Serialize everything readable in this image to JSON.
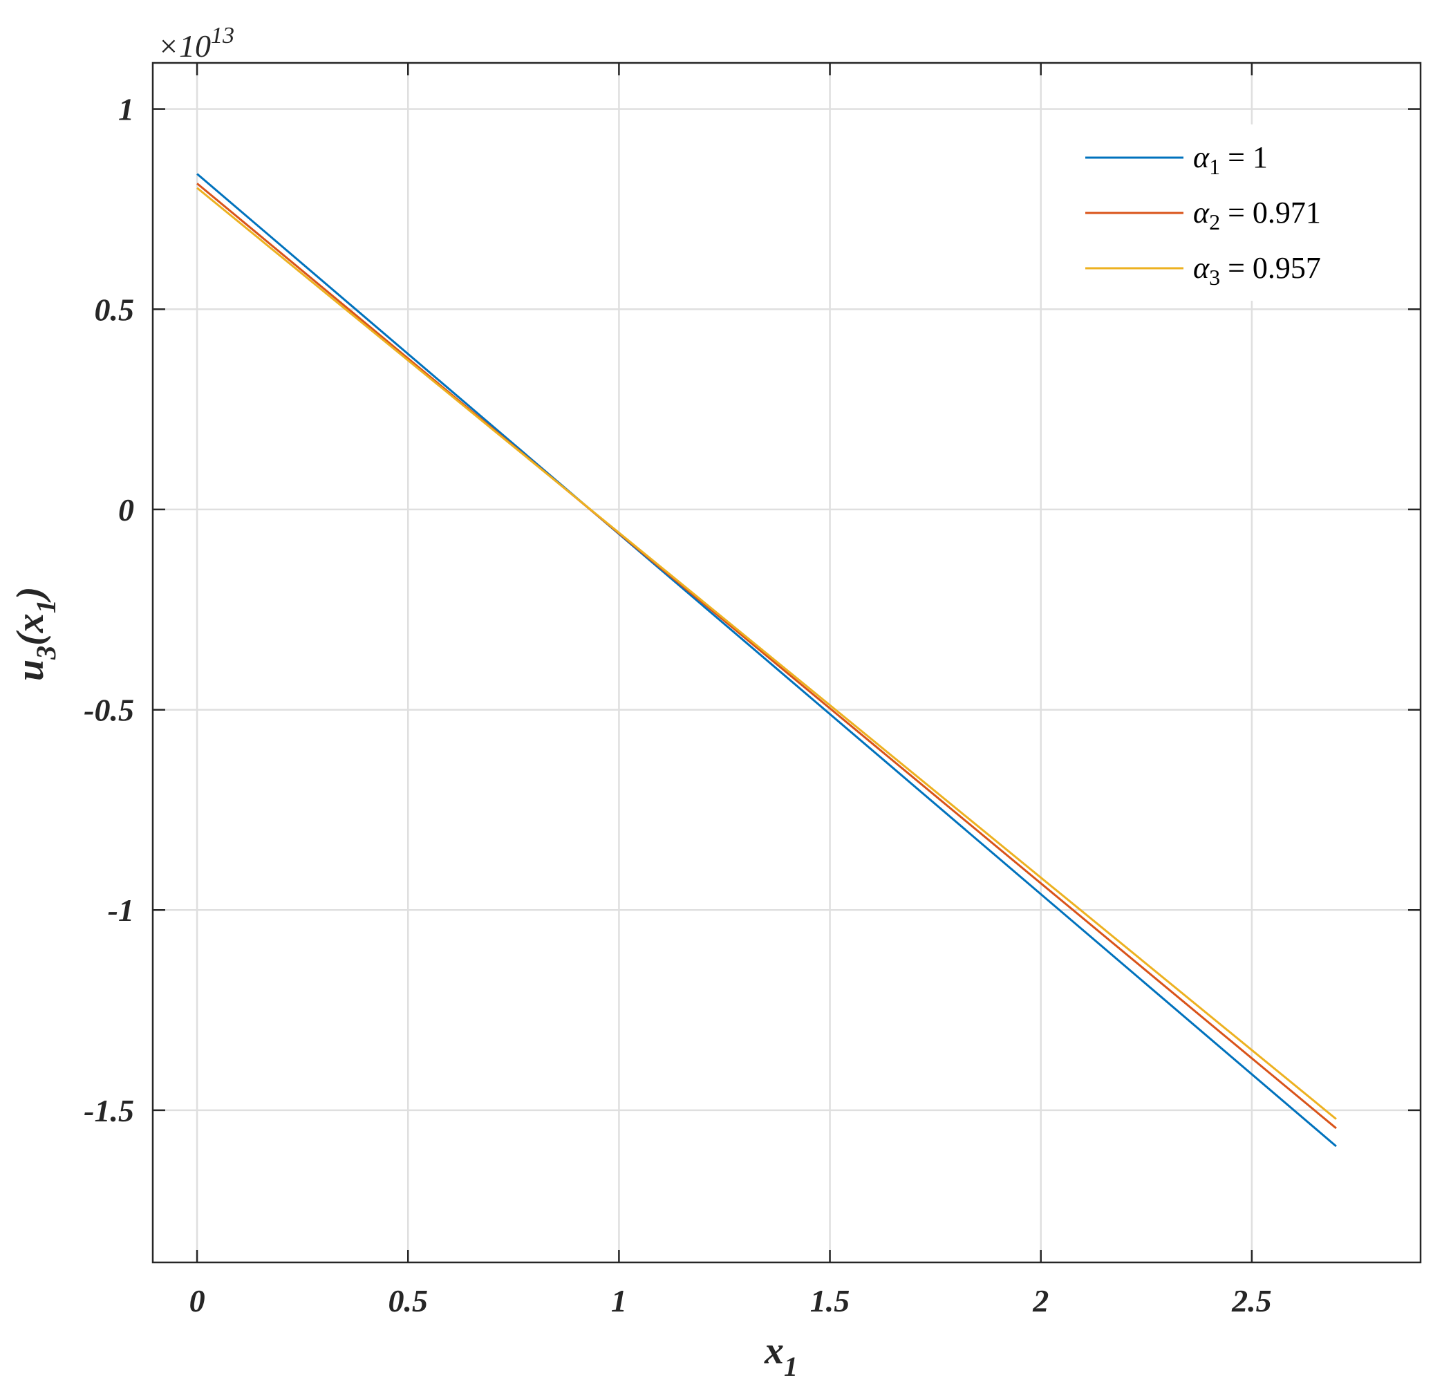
{
  "chart_data": {
    "type": "line",
    "xlabel": {
      "main": "x",
      "sub": "1"
    },
    "ylabel": {
      "main": "u",
      "sub": "3",
      "arg_open": "(x",
      "arg_sub": "1",
      "arg_close": ")"
    },
    "y_multiplier": {
      "prefix": "×10",
      "exponent": "13"
    },
    "xlim": [
      -0.105,
      2.9
    ],
    "ylim": [
      -1.88,
      1.115
    ],
    "x_ticks": [
      0,
      0.5,
      1,
      1.5,
      2,
      2.5
    ],
    "x_tick_labels": [
      "0",
      "0.5",
      "1",
      "1.5",
      "2",
      "2.5"
    ],
    "y_ticks": [
      1,
      0.5,
      0,
      -0.5,
      -1,
      -1.5
    ],
    "y_tick_labels": [
      "1",
      "0.5",
      "0",
      "-0.5",
      "-1",
      "-1.5"
    ],
    "grid": true,
    "legend_position": "top-right",
    "series": [
      {
        "name": "α1 = 1",
        "legend_greek": "α",
        "legend_sub": "1",
        "legend_value": " = 1",
        "color": "#0072BD",
        "x": [
          0,
          2.7
        ],
        "y": [
          0.838,
          -1.59
        ]
      },
      {
        "name": "α2 = 0.971",
        "legend_greek": "α",
        "legend_sub": "2",
        "legend_value": " = 0.971",
        "color": "#D95319",
        "x": [
          0,
          2.7
        ],
        "y": [
          0.814,
          -1.545
        ]
      },
      {
        "name": "α3 = 0.957",
        "legend_greek": "α",
        "legend_sub": "3",
        "legend_value": " = 0.957",
        "color": "#EDB120",
        "x": [
          0,
          2.7
        ],
        "y": [
          0.803,
          -1.522
        ]
      }
    ]
  }
}
